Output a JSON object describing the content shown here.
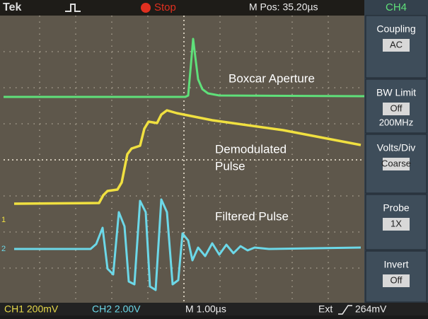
{
  "header": {
    "brand": "Tek",
    "status": "Stop",
    "position": "M Pos: 35.20µs",
    "channel": "CH4"
  },
  "menu": [
    {
      "label": "Coupling",
      "values": [
        "AC"
      ]
    },
    {
      "label": "BW Limit",
      "values": [
        "Off",
        "200MHz"
      ]
    },
    {
      "label": "Volts/Div",
      "values": [
        "Coarse"
      ]
    },
    {
      "label": "Probe",
      "values": [
        "1X"
      ]
    },
    {
      "label": "Invert",
      "values": [
        "Off"
      ]
    }
  ],
  "traces": [
    {
      "label": "Boxcar Aperture"
    },
    {
      "label": "Demodulated",
      "label2": "Pulse"
    },
    {
      "label": "Filtered Pulse"
    }
  ],
  "markers": [
    "1",
    "2"
  ],
  "footer": {
    "ch1": "CH1 200mV",
    "ch2": "CH2 2.00V",
    "time": "M 1.00µs",
    "trigger": "Ext",
    "level": "264mV"
  }
}
